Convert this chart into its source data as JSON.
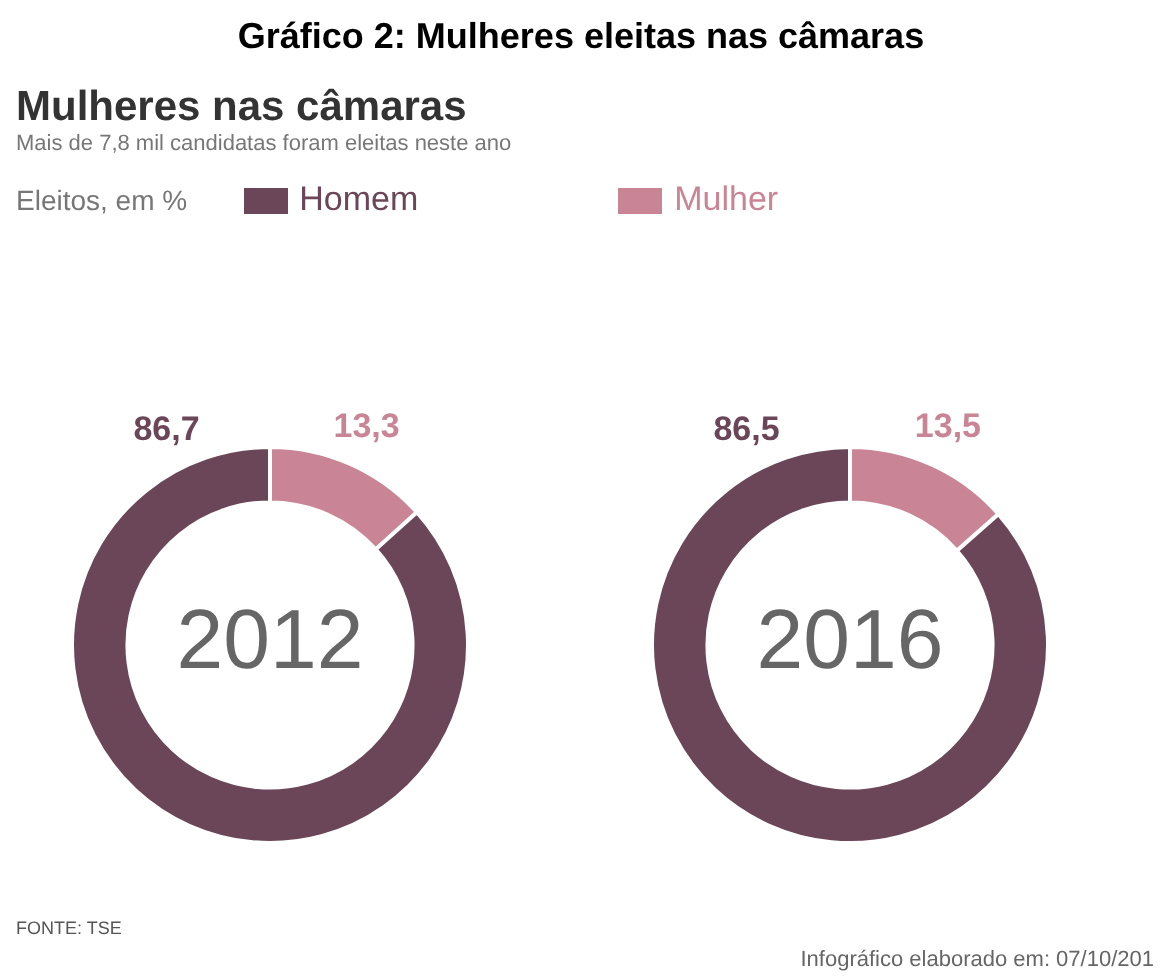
{
  "chart_data": [
    {
      "type": "donut",
      "title": "2012",
      "legend_title": "Eleitos, em %",
      "legend": "top",
      "annotations": [
        "Gráfico 2: Mulheres eleitas nas câmaras",
        "Mulheres nas câmaras",
        "Mais de 7,8 mil candidatas foram eleitas neste ano"
      ],
      "categories": [
        "Homem",
        "Mulher"
      ],
      "values": [
        86.7,
        13.3
      ],
      "value_labels": [
        "86,7",
        "13,3"
      ],
      "colors": [
        "#6b4658",
        "#c98595"
      ]
    },
    {
      "type": "donut",
      "title": "2016",
      "annotations": [
        "FONTE: TSE",
        "Infográfico elaborado em: 07/10/201"
      ],
      "values": [
        86.5,
        13.5
      ],
      "value_labels": [
        "86,5",
        "13,5"
      ],
      "colors": [
        "#6b4658",
        "#c98595"
      ]
    }
  ]
}
